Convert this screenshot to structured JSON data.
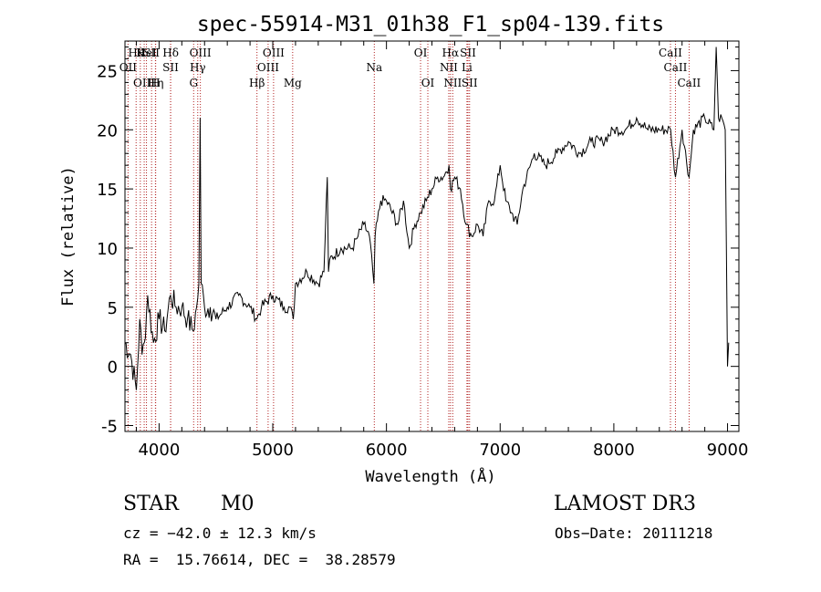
{
  "chart_data": {
    "type": "line",
    "title": "spec-55914-M31_01h38_F1_sp04-139.fits",
    "xlabel": "Wavelength (Å)",
    "ylabel": "Flux (relative)",
    "xlim": [
      3700,
      9100
    ],
    "ylim": [
      -5.5,
      27.5
    ],
    "xticks": [
      4000,
      5000,
      6000,
      7000,
      8000,
      9000
    ],
    "yticks": [
      -5,
      0,
      5,
      10,
      15,
      20,
      25
    ],
    "series": [
      {
        "name": "spectrum",
        "x": [
          3700,
          3750,
          3800,
          3830,
          3850,
          3870,
          3900,
          3950,
          4000,
          4050,
          4100,
          4150,
          4200,
          4250,
          4300,
          4330,
          4350,
          4361,
          4370,
          4400,
          4450,
          4500,
          4600,
          4700,
          4800,
          4860,
          4900,
          5000,
          5100,
          5150,
          5180,
          5200,
          5300,
          5400,
          5450,
          5480,
          5490,
          5500,
          5600,
          5700,
          5750,
          5800,
          5850,
          5890,
          5900,
          5950,
          6000,
          6100,
          6150,
          6200,
          6250,
          6300,
          6350,
          6400,
          6450,
          6500,
          6550,
          6563,
          6600,
          6650,
          6700,
          6750,
          6800,
          6850,
          6900,
          6950,
          7000,
          7050,
          7100,
          7150,
          7200,
          7300,
          7400,
          7500,
          7600,
          7700,
          7800,
          7900,
          8000,
          8100,
          8200,
          8300,
          8400,
          8500,
          8542,
          8600,
          8662,
          8700,
          8800,
          8880,
          8900,
          8920,
          8950,
          8980,
          9000,
          9010
        ],
        "y": [
          2,
          1,
          -2,
          4,
          1,
          2,
          6,
          2,
          4,
          3,
          6,
          5,
          5,
          4,
          3,
          5,
          7,
          21,
          7,
          5,
          5,
          4,
          5,
          6,
          5,
          4,
          5,
          6,
          5,
          5,
          4,
          7,
          8,
          7,
          8,
          16,
          8,
          9,
          10,
          10,
          11,
          12,
          11,
          7,
          11,
          14,
          14,
          12,
          14,
          10,
          12,
          13,
          14,
          15,
          16,
          16,
          17,
          15,
          16,
          15,
          12,
          11,
          12,
          11,
          14,
          14,
          17,
          14,
          13,
          12,
          15,
          18,
          17,
          18,
          19,
          18,
          19,
          19,
          20,
          20,
          21,
          20,
          20,
          20,
          16,
          20,
          16,
          20,
          21,
          20,
          27,
          21,
          21,
          20,
          0,
          2
        ]
      }
    ],
    "lines": [
      {
        "w": 3798,
        "row": 1,
        "label": "Hθ"
      },
      {
        "w": 3835,
        "row": 1,
        "label": "K"
      },
      {
        "w": 3889,
        "row": 1,
        "label": "HeI"
      },
      {
        "w": 3934,
        "row": 1,
        "label": "SII"
      },
      {
        "w": 4102,
        "row": 1,
        "label": "Hδ"
      },
      {
        "w": 4363,
        "row": 1,
        "label": "OIII"
      },
      {
        "w": 5007,
        "row": 1,
        "label": "OIII"
      },
      {
        "w": 6300,
        "row": 1,
        "label": "OI"
      },
      {
        "w": 6563,
        "row": 1,
        "label": "Hα"
      },
      {
        "w": 6717,
        "row": 1,
        "label": "SII"
      },
      {
        "w": 8498,
        "row": 1,
        "label": "CaII"
      },
      {
        "w": 3727,
        "row": 2,
        "label": "OII"
      },
      {
        "w": 4101,
        "row": 2,
        "label": "SII"
      },
      {
        "w": 4340,
        "row": 2,
        "label": "Hγ"
      },
      {
        "w": 4959,
        "row": 2,
        "label": "OIII"
      },
      {
        "w": 5893,
        "row": 2,
        "label": "Na"
      },
      {
        "w": 6548,
        "row": 2,
        "label": "NII"
      },
      {
        "w": 6708,
        "row": 2,
        "label": "Li"
      },
      {
        "w": 8542,
        "row": 2,
        "label": "CaII"
      },
      {
        "w": 3869,
        "row": 3,
        "label": "OIII"
      },
      {
        "w": 3970,
        "row": 3,
        "label": "Hη"
      },
      {
        "w": 3968,
        "row": 3,
        "label": "H"
      },
      {
        "w": 4304,
        "row": 3,
        "label": "G"
      },
      {
        "w": 4861,
        "row": 3,
        "label": "Hβ"
      },
      {
        "w": 5175,
        "row": 3,
        "label": "Mg"
      },
      {
        "w": 6364,
        "row": 3,
        "label": "OI"
      },
      {
        "w": 6583,
        "row": 3,
        "label": "NII"
      },
      {
        "w": 6731,
        "row": 3,
        "label": "SII"
      },
      {
        "w": 8662,
        "row": 3,
        "label": "CaII"
      }
    ]
  },
  "info": {
    "class_label": "STAR",
    "subclass": "M0",
    "survey": "LAMOST DR3",
    "cz": "cz = −42.0 ± 12.3 km/s",
    "obs_date": "Obs−Date: 20111218",
    "radec": "RA =  15.76614, DEC =  38.28579"
  }
}
